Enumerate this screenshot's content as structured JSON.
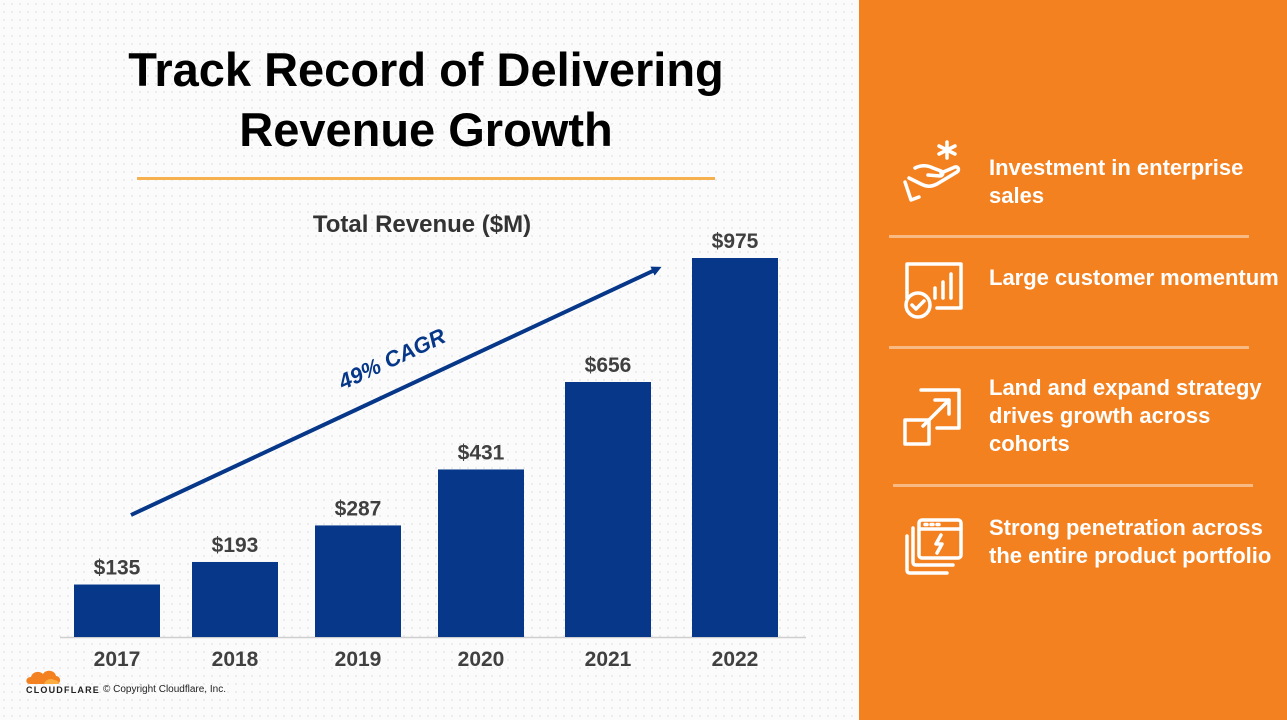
{
  "slide": {
    "title_line1": "Track Record of Delivering",
    "title_line2": "Revenue Growth"
  },
  "chart_data": {
    "type": "bar",
    "title": "Total Revenue ($M)",
    "categories": [
      "2017",
      "2018",
      "2019",
      "2020",
      "2021",
      "2022"
    ],
    "values": [
      135,
      193,
      287,
      431,
      656,
      975
    ],
    "data_labels": [
      "$135",
      "$193",
      "$287",
      "$431",
      "$656",
      "$975"
    ],
    "bar_color": "#063788",
    "annotation": "49% CAGR",
    "xlabel": "",
    "ylabel": "",
    "ylim": [
      0,
      975
    ],
    "grid": false,
    "legend": "none"
  },
  "features": [
    {
      "icon": "hand-sparkle-icon",
      "text": "Investment in enterprise sales"
    },
    {
      "icon": "chart-check-icon",
      "text": "Large customer momentum"
    },
    {
      "icon": "expand-arrow-icon",
      "text": "Land and expand strategy drives growth across cohorts"
    },
    {
      "icon": "stacked-windows-icon",
      "text": "Strong penetration across the entire product portfolio"
    }
  ],
  "footer": {
    "brand": "CLOUDFLARE",
    "copyright": "© Copyright Cloudflare, Inc."
  },
  "colors": {
    "accent_orange": "#f48120",
    "title_rule": "#f6b04e",
    "bar_blue": "#063788"
  }
}
